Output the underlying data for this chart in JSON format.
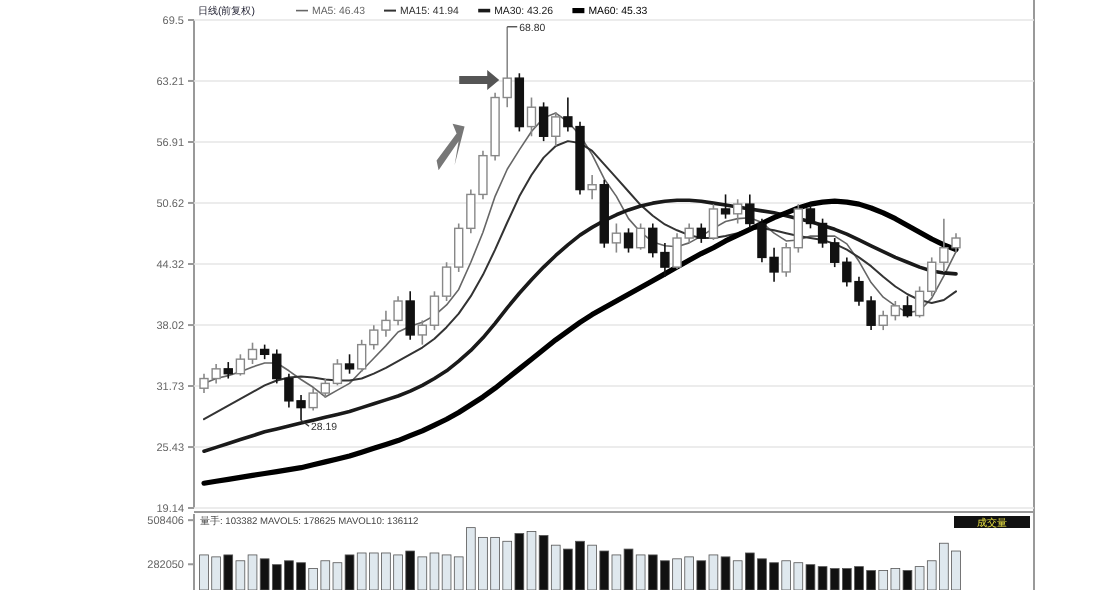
{
  "chart_data": [
    {
      "type": "candlestick",
      "title": "日线(前复权)",
      "categories": [
        null,
        null,
        null,
        null,
        null,
        null,
        null,
        null,
        null,
        null,
        null,
        null,
        null,
        null,
        null,
        null,
        null,
        null,
        null,
        null,
        null,
        null,
        null,
        null,
        null,
        null,
        null,
        null,
        null,
        null,
        null,
        null,
        null,
        null,
        null,
        null,
        null,
        null,
        null,
        null,
        null,
        null,
        null,
        null,
        null,
        null,
        null,
        null,
        null,
        null,
        null,
        null,
        null,
        null,
        null,
        null,
        null,
        null,
        null,
        null,
        null,
        null,
        null
      ],
      "ohlc": [
        [
          31.5,
          33.0,
          31.0,
          32.5
        ],
        [
          32.5,
          34.0,
          32.0,
          33.5
        ],
        [
          33.5,
          34.2,
          32.5,
          33.0
        ],
        [
          33.0,
          35.0,
          32.8,
          34.5
        ],
        [
          34.5,
          36.2,
          34.0,
          35.5
        ],
        [
          35.5,
          36.0,
          34.5,
          35.0
        ],
        [
          35.0,
          35.5,
          32.0,
          32.5
        ],
        [
          32.5,
          33.0,
          29.5,
          30.2
        ],
        [
          30.2,
          30.8,
          28.19,
          29.5
        ],
        [
          29.5,
          31.5,
          29.2,
          31.0
        ],
        [
          31.0,
          32.5,
          30.5,
          32.0
        ],
        [
          32.0,
          34.5,
          31.8,
          34.0
        ],
        [
          34.0,
          35.0,
          33.0,
          33.5
        ],
        [
          33.5,
          36.5,
          33.2,
          36.0
        ],
        [
          36.0,
          38.0,
          35.5,
          37.5
        ],
        [
          37.5,
          39.5,
          36.8,
          38.5
        ],
        [
          38.5,
          41.0,
          38.0,
          40.5
        ],
        [
          40.5,
          41.5,
          36.5,
          37.0
        ],
        [
          37.0,
          38.5,
          36.0,
          38.0
        ],
        [
          38.0,
          41.5,
          37.5,
          41.0
        ],
        [
          41.0,
          44.5,
          40.5,
          44.0
        ],
        [
          44.0,
          48.5,
          43.5,
          48.0
        ],
        [
          48.0,
          52.0,
          47.5,
          51.5
        ],
        [
          51.5,
          56.0,
          51.0,
          55.5
        ],
        [
          55.5,
          62.0,
          55.0,
          61.5
        ],
        [
          61.5,
          68.8,
          60.5,
          63.5
        ],
        [
          63.5,
          64.0,
          58.0,
          58.5
        ],
        [
          58.5,
          61.5,
          57.5,
          60.5
        ],
        [
          60.5,
          61.0,
          57.0,
          57.5
        ],
        [
          57.5,
          60.0,
          56.5,
          59.5
        ],
        [
          59.5,
          61.5,
          58.0,
          58.5
        ],
        [
          58.5,
          59.0,
          51.5,
          52.0
        ],
        [
          52.0,
          53.5,
          51.0,
          52.5
        ],
        [
          52.5,
          53.0,
          46.0,
          46.5
        ],
        [
          46.5,
          48.5,
          45.5,
          47.5
        ],
        [
          47.5,
          48.0,
          45.5,
          46.0
        ],
        [
          46.0,
          48.5,
          45.8,
          48.0
        ],
        [
          48.0,
          48.5,
          45.0,
          45.5
        ],
        [
          45.5,
          46.5,
          43.0,
          44.0
        ],
        [
          44.0,
          47.5,
          43.8,
          47.0
        ],
        [
          47.0,
          48.5,
          46.5,
          48.0
        ],
        [
          48.0,
          48.5,
          46.5,
          47.0
        ],
        [
          47.0,
          50.5,
          46.8,
          50.0
        ],
        [
          50.0,
          51.5,
          49.0,
          49.5
        ],
        [
          49.5,
          51.0,
          48.5,
          50.5
        ],
        [
          50.5,
          51.5,
          48.0,
          48.5
        ],
        [
          48.5,
          49.0,
          44.5,
          45.0
        ],
        [
          45.0,
          46.0,
          42.5,
          43.5
        ],
        [
          43.5,
          46.5,
          43.0,
          46.0
        ],
        [
          46.0,
          50.5,
          45.5,
          50.0
        ],
        [
          50.0,
          50.5,
          48.0,
          48.5
        ],
        [
          48.5,
          49.0,
          46.0,
          46.5
        ],
        [
          46.5,
          47.0,
          44.0,
          44.5
        ],
        [
          44.5,
          45.0,
          42.0,
          42.5
        ],
        [
          42.5,
          43.0,
          40.0,
          40.5
        ],
        [
          40.5,
          41.0,
          37.5,
          38.0
        ],
        [
          38.0,
          39.5,
          37.5,
          39.0
        ],
        [
          39.0,
          40.5,
          38.5,
          40.0
        ],
        [
          40.0,
          41.0,
          38.8,
          39.0
        ],
        [
          39.0,
          42.0,
          38.8,
          41.5
        ],
        [
          41.5,
          45.0,
          41.0,
          44.5
        ],
        [
          44.5,
          49.0,
          43.5,
          46.0
        ],
        [
          46.0,
          47.5,
          45.5,
          47.0
        ]
      ],
      "series": [
        {
          "name": "MA5: 46.43",
          "type": "line",
          "color": "#666666",
          "values": [
            32.0,
            32.5,
            32.8,
            33.2,
            33.7,
            34.1,
            34.1,
            33.3,
            32.4,
            31.6,
            30.6,
            31.3,
            32.0,
            33.3,
            34.6,
            35.9,
            37.3,
            37.9,
            38.3,
            39.0,
            40.1,
            41.7,
            44.5,
            47.6,
            51.3,
            54.1,
            56.1,
            58.0,
            59.4,
            59.9,
            59.0,
            57.6,
            55.6,
            53.1,
            51.3,
            49.0,
            47.6,
            46.6,
            46.2,
            46.1,
            46.5,
            47.2,
            48.0,
            48.7,
            49.0,
            49.1,
            48.6,
            47.5,
            46.7,
            46.8,
            47.2,
            47.2,
            47.2,
            46.4,
            44.6,
            42.4,
            40.9,
            40.0,
            39.3,
            39.5,
            40.8,
            43.1,
            45.6
          ]
        },
        {
          "name": "MA15: 41.94",
          "type": "line",
          "color": "#333333",
          "values": [
            28.3,
            29.0,
            29.7,
            30.4,
            31.1,
            31.8,
            32.3,
            32.6,
            32.7,
            32.6,
            32.4,
            32.3,
            32.3,
            32.5,
            33.0,
            33.6,
            34.3,
            35.0,
            35.7,
            36.6,
            37.8,
            39.2,
            41.0,
            43.2,
            45.8,
            48.6,
            51.3,
            53.5,
            55.3,
            56.5,
            57.0,
            56.8,
            56.0,
            54.6,
            53.2,
            51.8,
            50.4,
            49.3,
            48.4,
            47.8,
            47.3,
            47.0,
            47.0,
            47.2,
            47.5,
            47.9,
            48.0,
            47.8,
            47.5,
            47.2,
            47.0,
            46.8,
            46.4,
            45.8,
            45.0,
            44.1,
            43.0,
            42.0,
            41.2,
            40.6,
            40.3,
            40.6,
            41.5
          ]
        },
        {
          "name": "MA30: 43.26",
          "type": "line",
          "color": "#1a1a1a",
          "values": [
            25.0,
            25.4,
            25.8,
            26.2,
            26.6,
            27.0,
            27.3,
            27.6,
            27.9,
            28.2,
            28.5,
            28.8,
            29.1,
            29.5,
            29.9,
            30.3,
            30.7,
            31.2,
            31.8,
            32.5,
            33.3,
            34.3,
            35.4,
            36.7,
            38.2,
            39.8,
            41.3,
            42.7,
            44.0,
            45.2,
            46.3,
            47.3,
            48.1,
            48.8,
            49.4,
            49.9,
            50.3,
            50.6,
            50.8,
            50.9,
            50.9,
            50.8,
            50.6,
            50.4,
            50.2,
            50.0,
            49.8,
            49.6,
            49.3,
            49.0,
            48.7,
            48.3,
            47.9,
            47.4,
            46.8,
            46.2,
            45.6,
            45.0,
            44.5,
            44.0,
            43.6,
            43.4,
            43.3
          ]
        },
        {
          "name": "MA60: 45.33",
          "type": "line",
          "color": "#000000",
          "values": [
            21.7,
            21.9,
            22.1,
            22.3,
            22.5,
            22.7,
            22.9,
            23.1,
            23.3,
            23.6,
            23.9,
            24.2,
            24.5,
            24.9,
            25.3,
            25.7,
            26.1,
            26.6,
            27.1,
            27.7,
            28.3,
            29.0,
            29.8,
            30.6,
            31.5,
            32.5,
            33.5,
            34.5,
            35.5,
            36.5,
            37.4,
            38.3,
            39.1,
            39.8,
            40.5,
            41.2,
            41.9,
            42.6,
            43.3,
            44.0,
            44.7,
            45.4,
            46.0,
            46.7,
            47.3,
            47.9,
            48.5,
            49.1,
            49.6,
            50.1,
            50.5,
            50.7,
            50.8,
            50.7,
            50.5,
            50.1,
            49.6,
            49.0,
            48.3,
            47.6,
            46.9,
            46.3,
            45.8
          ]
        }
      ],
      "ylim": [
        19.14,
        69.5
      ],
      "yticks": [
        19.14,
        25.43,
        31.73,
        38.02,
        44.32,
        50.62,
        56.91,
        63.21,
        69.5
      ],
      "grid": "y",
      "legend": "top left",
      "tick_labels": "y",
      "annotations": [
        "68.80",
        "28.19"
      ]
    },
    {
      "type": "bar",
      "categories": [
        null,
        null,
        null,
        null,
        null,
        null,
        null,
        null,
        null,
        null,
        null,
        null,
        null,
        null,
        null,
        null,
        null,
        null,
        null,
        null,
        null,
        null,
        null,
        null,
        null,
        null,
        null,
        null,
        null,
        null,
        null,
        null,
        null,
        null,
        null,
        null,
        null,
        null,
        null,
        null,
        null,
        null,
        null,
        null,
        null,
        null,
        null,
        null,
        null,
        null,
        null,
        null,
        null,
        null,
        null,
        null,
        null,
        null,
        null,
        null,
        null,
        null,
        null
      ],
      "values": [
        330000,
        320000,
        330000,
        300000,
        330000,
        310000,
        280000,
        300000,
        290000,
        260000,
        300000,
        290000,
        330000,
        340000,
        340000,
        340000,
        330000,
        350000,
        320000,
        340000,
        330000,
        320000,
        470000,
        420000,
        420000,
        400000,
        440000,
        450000,
        430000,
        380000,
        360000,
        400000,
        380000,
        350000,
        330000,
        360000,
        330000,
        330000,
        300000,
        310000,
        320000,
        300000,
        330000,
        320000,
        300000,
        340000,
        310000,
        290000,
        300000,
        290000,
        280000,
        270000,
        260000,
        260000,
        270000,
        250000,
        250000,
        260000,
        250000,
        270000,
        300000,
        390000,
        350000
      ],
      "colors": [
        "#dfe8ee",
        "#dfe8ee",
        "#111111",
        "#dfe8ee",
        "#dfe8ee",
        "#111111",
        "#111111",
        "#111111",
        "#111111",
        "#dfe8ee",
        "#dfe8ee",
        "#dfe8ee",
        "#111111",
        "#dfe8ee",
        "#dfe8ee",
        "#dfe8ee",
        "#dfe8ee",
        "#111111",
        "#dfe8ee",
        "#dfe8ee",
        "#dfe8ee",
        "#dfe8ee",
        "#dfe8ee",
        "#dfe8ee",
        "#dfe8ee",
        "#dfe8ee",
        "#111111",
        "#dfe8ee",
        "#111111",
        "#dfe8ee",
        "#111111",
        "#111111",
        "#dfe8ee",
        "#111111",
        "#dfe8ee",
        "#111111",
        "#dfe8ee",
        "#111111",
        "#111111",
        "#dfe8ee",
        "#dfe8ee",
        "#111111",
        "#dfe8ee",
        "#111111",
        "#dfe8ee",
        "#111111",
        "#111111",
        "#111111",
        "#dfe8ee",
        "#dfe8ee",
        "#111111",
        "#111111",
        "#111111",
        "#111111",
        "#111111",
        "#111111",
        "#dfe8ee",
        "#dfe8ee",
        "#111111",
        "#dfe8ee",
        "#dfe8ee",
        "#dfe8ee",
        "#dfe8ee"
      ],
      "ylim": [
        150000,
        540000
      ],
      "yticks": [
        282050,
        508406
      ],
      "tick_labels": "y",
      "annotations": [
        "量手: 103382 MAVOL5: 178625 MAVOL10: 136112",
        "成交量"
      ]
    }
  ]
}
